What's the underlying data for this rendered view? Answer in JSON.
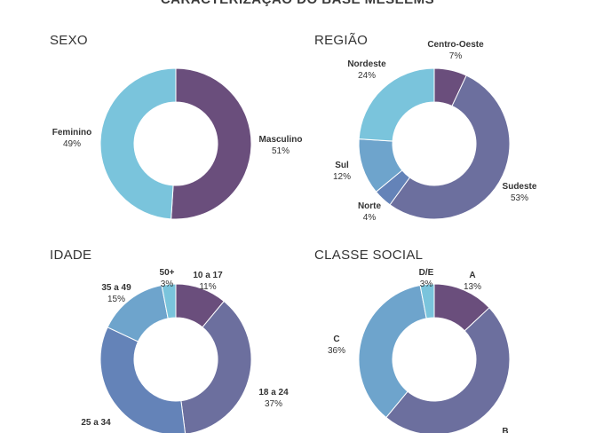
{
  "title": "CARACTERIZAÇÃO DO BASE MESEEMS",
  "chart_data": [
    {
      "type": "pie",
      "title": "SEXO",
      "categories": [
        "Masculino",
        "Feminino"
      ],
      "values": [
        51,
        49
      ],
      "value_labels": [
        "51%",
        "49%"
      ],
      "colors": [
        "#6a4e7c",
        "#7ac4dc"
      ]
    },
    {
      "type": "pie",
      "title": "REGIÃO",
      "categories": [
        "Centro-Oeste",
        "Sudeste",
        "Norte",
        "Sul",
        "Nordeste"
      ],
      "values": [
        7,
        53,
        4,
        12,
        24
      ],
      "value_labels": [
        "7%",
        "53%",
        "4%",
        "12%",
        "24%"
      ],
      "colors": [
        "#6a4e7c",
        "#6c6f9e",
        "#6483b8",
        "#6ea4cc",
        "#7ac4dc"
      ]
    },
    {
      "type": "pie",
      "title": "IDADE",
      "categories": [
        "10 a 17",
        "18 a 24",
        "25 a 34",
        "35 a 49",
        "50+"
      ],
      "values": [
        11,
        37,
        34,
        15,
        3
      ],
      "value_labels": [
        "11%",
        "37%",
        "",
        "15%",
        "3%"
      ],
      "colors": [
        "#6a4e7c",
        "#6c6f9e",
        "#6483b8",
        "#6ea4cc",
        "#7ac4dc"
      ]
    },
    {
      "type": "pie",
      "title": "CLASSE SOCIAL",
      "categories": [
        "A",
        "B",
        "C",
        "D/E"
      ],
      "values": [
        13,
        48,
        36,
        3
      ],
      "value_labels": [
        "13%",
        "",
        "36%",
        "3%"
      ],
      "colors": [
        "#6a4e7c",
        "#6c6f9e",
        "#6ea4cc",
        "#7ac4dc"
      ]
    }
  ]
}
